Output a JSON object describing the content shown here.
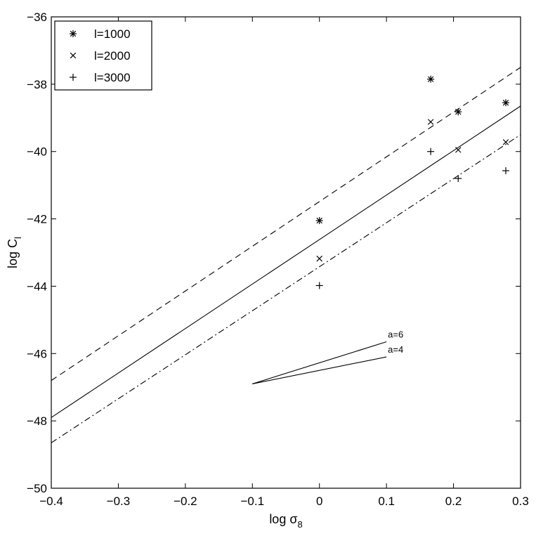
{
  "chart_data": {
    "type": "scatter",
    "title": "",
    "xlabel": {
      "base": "log σ",
      "sub": "8"
    },
    "ylabel": {
      "base": "log C",
      "sub": "l"
    },
    "xlim": [
      -0.4,
      0.3
    ],
    "ylim": [
      -50,
      -36
    ],
    "xticks": [
      -0.4,
      -0.3,
      -0.2,
      -0.1,
      0,
      0.1,
      0.2,
      0.3
    ],
    "xtick_labels": [
      "−0.4",
      "−0.3",
      "−0.2",
      "−0.1",
      "0",
      "0.1",
      "0.2",
      "0.3"
    ],
    "yticks": [
      -50,
      -48,
      -46,
      -44,
      -42,
      -40,
      -38,
      -36
    ],
    "ytick_labels": [
      "−50",
      "−48",
      "−46",
      "−44",
      "−42",
      "−40",
      "−38",
      "−36"
    ],
    "grid": false,
    "legend_position": "top-left",
    "series": [
      {
        "name": "l=1000",
        "marker": "asterisk",
        "x": [
          0,
          0.166,
          0.207,
          0.278
        ],
        "y": [
          -42.05,
          -37.85,
          -38.82,
          -38.55
        ]
      },
      {
        "name": "l=2000",
        "marker": "x",
        "x": [
          0,
          0.166,
          0.207,
          0.278
        ],
        "y": [
          -43.18,
          -39.12,
          -39.95,
          -39.72
        ]
      },
      {
        "name": "l=3000",
        "marker": "plus",
        "x": [
          0,
          0.166,
          0.207,
          0.278
        ],
        "y": [
          -43.98,
          -40.0,
          -40.8,
          -40.57
        ]
      }
    ],
    "fit_lines": [
      {
        "style": "dashed",
        "x": [
          -0.4,
          0.3
        ],
        "y": [
          -46.8,
          -37.5
        ]
      },
      {
        "style": "solid",
        "x": [
          -0.4,
          0.3
        ],
        "y": [
          -47.9,
          -38.65
        ]
      },
      {
        "style": "dashdot",
        "x": [
          -0.4,
          0.3
        ],
        "y": [
          -48.65,
          -39.5
        ]
      }
    ],
    "annotations": [
      {
        "label": "a=6",
        "x": [
          -0.1,
          0.1
        ],
        "y": [
          -46.9,
          -45.65
        ]
      },
      {
        "label": "a=4",
        "x": [
          -0.1,
          0.1
        ],
        "y": [
          -46.9,
          -46.1
        ]
      }
    ]
  }
}
